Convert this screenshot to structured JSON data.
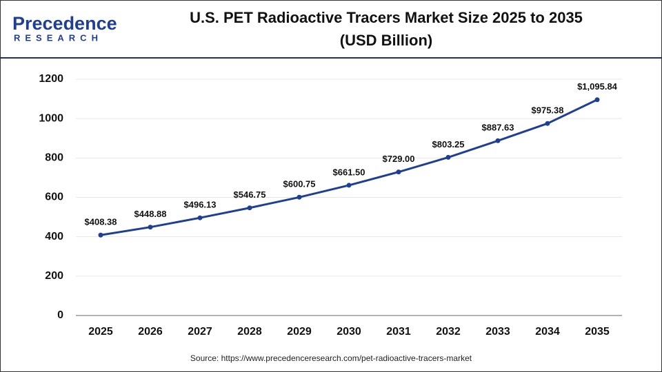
{
  "logo": {
    "name": "Precedence",
    "tagline": "RESEARCH"
  },
  "chart_data": {
    "type": "line",
    "title": "U.S. PET Radioactive Tracers Market Size 2025 to 2035",
    "subtitle": "(USD Billion)",
    "categories": [
      "2025",
      "2026",
      "2027",
      "2028",
      "2029",
      "2030",
      "2031",
      "2032",
      "2033",
      "2034",
      "2035"
    ],
    "values": [
      408.38,
      448.88,
      496.13,
      546.75,
      600.75,
      661.5,
      729.0,
      803.25,
      887.63,
      975.38,
      1095.84
    ],
    "value_labels": [
      "$408.38",
      "$448.88",
      "$496.13",
      "$546.75",
      "$600.75",
      "$661.50",
      "$729.00",
      "$803.25",
      "$887.63",
      "$975.38",
      "$1,095.84"
    ],
    "color": "#1f3f94",
    "ylim": [
      0,
      1200
    ],
    "yticks": [
      0,
      200,
      400,
      600,
      800,
      1000,
      1200
    ],
    "grid": true,
    "source": "Source: https://www.precedenceresearch.com/pet-radioactive-tracers-market"
  }
}
